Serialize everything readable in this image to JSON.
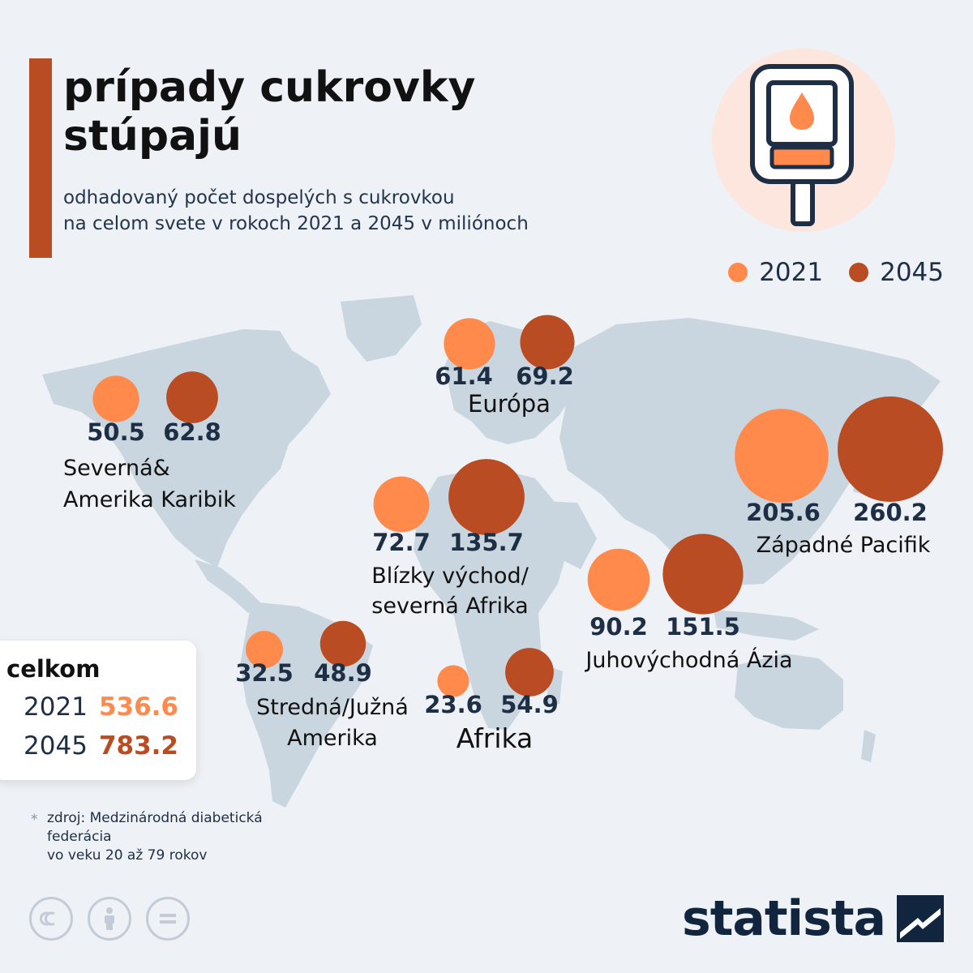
{
  "title_line1": "prípady cukrovky",
  "title_line2": "stúpajú",
  "subtitle_line1": "odhadovaný počet dospelých s cukrovkou",
  "subtitle_line2": "na celom svete v rokoch 2021 a 2045 v miliónoch",
  "colors": {
    "y2021": "#ff8a4c",
    "y2045": "#b94c22",
    "map": "#c9d5df",
    "accent": "#b94c22"
  },
  "legend": {
    "y2021": "2021",
    "y2045": "2045"
  },
  "chart_data": {
    "type": "bubble-map",
    "series": [
      {
        "name": "2021",
        "color": "#ff8a4c"
      },
      {
        "name": "2045",
        "color": "#b94c22"
      }
    ],
    "regions": [
      {
        "label_lines": [
          "Európa"
        ],
        "v2021": 61.4,
        "v2045": 69.2
      },
      {
        "label_lines": [
          "Severná&",
          "Amerika Karibik"
        ],
        "v2021": 50.5,
        "v2045": 62.8
      },
      {
        "label_lines": [
          "Západné Pacifik"
        ],
        "v2021": 205.6,
        "v2045": 260.2
      },
      {
        "label_lines": [
          "Blízky východ/",
          "severná Afrika"
        ],
        "v2021": 72.7,
        "v2045": 135.7
      },
      {
        "label_lines": [
          "Juhovýchodná Ázia"
        ],
        "v2021": 90.2,
        "v2045": 151.5
      },
      {
        "label_lines": [
          "Stredná/Južná",
          "Amerika"
        ],
        "v2021": 32.5,
        "v2045": 48.9
      },
      {
        "label_lines": [
          "Afrika"
        ],
        "v2021": 23.6,
        "v2045": 54.9
      }
    ]
  },
  "totals": {
    "title": "celkom",
    "rows": [
      {
        "year": "2021",
        "value": "536.6"
      },
      {
        "year": "2045",
        "value": "783.2"
      }
    ]
  },
  "source": {
    "star": "*",
    "line1": "zdroj: Medzinárodná diabetická",
    "line2": "federácia",
    "line3": "vo veku 20 až 79 rokov"
  },
  "brand": "statista",
  "icons": [
    "glucose-meter-icon",
    "cc-icon",
    "person-icon",
    "equals-icon",
    "statista-logo-icon"
  ]
}
